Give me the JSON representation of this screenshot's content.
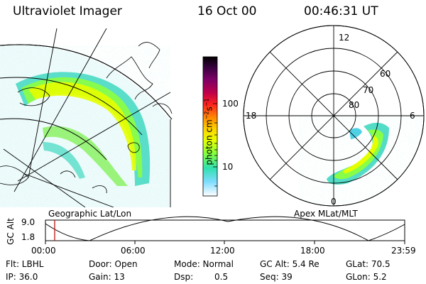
{
  "header": {
    "instrument": "Ultraviolet Imager",
    "date": "16 Oct 00",
    "time": "00:46:31 UT"
  },
  "colorbar": {
    "unit_label": "photon cm",
    "ticks": [
      "100",
      "10"
    ],
    "colors": [
      "#000000",
      "#3a0040",
      "#7a0066",
      "#b3006a",
      "#e0005a",
      "#ff2020",
      "#ff7a00",
      "#ffc000",
      "#e6ff00",
      "#9cff30",
      "#40ff60",
      "#30e0c0",
      "#40c8ff",
      "#c0f0ff",
      "#ffffff"
    ]
  },
  "geo_panel": {
    "caption": "Geographic Lat/Lon"
  },
  "polar_panel": {
    "caption": "Apex MLat/MLT",
    "mlt_labels": {
      "top": "12",
      "left": "18",
      "right": "6",
      "bottom": "0"
    },
    "lat_labels": [
      "60",
      "70",
      "80"
    ]
  },
  "timeline": {
    "ylabel": "GC Alt",
    "y_values": [
      "9.0",
      "1.8"
    ],
    "x_ticks": [
      "00:00",
      "06:00",
      "12:00",
      "18:00",
      "23:59"
    ],
    "marker_color": "#c02020"
  },
  "info": {
    "row1": [
      "Flt: LBHL",
      "Door: Open",
      "Mode: Normal",
      "GC Alt: 5.4 Re",
      "GLat: 70.5"
    ],
    "row2": [
      "IP: 36.0",
      "Gain: 13",
      "Dsp:",
      "0.5",
      "Seq: 39",
      "GLon: 5.2"
    ]
  }
}
